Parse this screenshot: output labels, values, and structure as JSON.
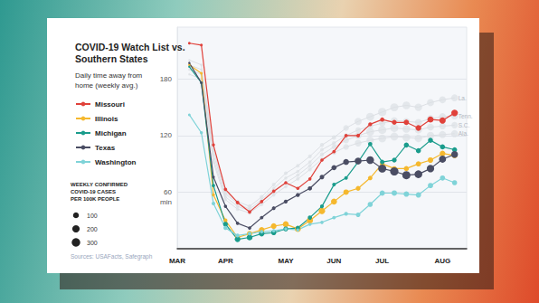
{
  "chart_data": {
    "type": "line",
    "title": "COVID-19 Watch List vs. Southern States",
    "subtitle": "Daily time away from home (weekly avg.)",
    "ylabel": "min",
    "source": "Sources: USAFacts, Safegraph",
    "categories": [
      "MAR",
      null,
      null,
      null,
      "APR",
      null,
      null,
      null,
      null,
      "MAY",
      null,
      null,
      null,
      "JUN",
      null,
      null,
      null,
      "JUL",
      null,
      null,
      null,
      null,
      "AUG",
      null,
      null
    ],
    "ylim": [
      0,
      235
    ],
    "yticks": [
      60,
      120,
      180
    ],
    "grid": true,
    "legend": "left",
    "marker": "circle",
    "size_legend": {
      "title": [
        "WEEKLY CONFIRMED",
        "COVID-19 CASES",
        "PER 100K PEOPLE"
      ],
      "values": [
        100,
        200,
        300
      ]
    },
    "series": [
      {
        "name": "La.",
        "color": "#dcdfe4",
        "line_style": "faint",
        "values": [
          null,
          200,
          195,
          105,
          60,
          50,
          45,
          55,
          68,
          80,
          88,
          98,
          110,
          118,
          128,
          135,
          140,
          145,
          150,
          152,
          150,
          155,
          158,
          160,
          null
        ],
        "cases": [
          null,
          0,
          1,
          3,
          10,
          20,
          25,
          20,
          18,
          15,
          15,
          18,
          25,
          40,
          90,
          180,
          250,
          280,
          260,
          230,
          200,
          180,
          170,
          160,
          null
        ]
      },
      {
        "name": "Tenn.",
        "color": "#dcdfe4",
        "line_style": "faint",
        "values": [
          null,
          195,
          190,
          100,
          58,
          48,
          42,
          52,
          64,
          75,
          82,
          92,
          105,
          112,
          120,
          126,
          130,
          133,
          136,
          135,
          134,
          138,
          140,
          141,
          null
        ],
        "cases": [
          null,
          0,
          1,
          2,
          5,
          8,
          10,
          9,
          8,
          8,
          9,
          10,
          15,
          25,
          45,
          70,
          100,
          130,
          150,
          160,
          170,
          175,
          180,
          180,
          null
        ]
      },
      {
        "name": "S.C.",
        "color": "#dcdfe4",
        "line_style": "faint",
        "values": [
          null,
          190,
          185,
          95,
          55,
          45,
          40,
          50,
          60,
          70,
          78,
          88,
          100,
          108,
          115,
          120,
          124,
          126,
          128,
          127,
          126,
          129,
          130,
          131,
          null
        ],
        "cases": [
          null,
          0,
          1,
          2,
          6,
          10,
          12,
          11,
          10,
          10,
          12,
          15,
          25,
          50,
          100,
          180,
          240,
          260,
          250,
          220,
          190,
          160,
          140,
          130,
          null
        ]
      },
      {
        "name": "Ala.",
        "color": "#dcdfe4",
        "line_style": "faint",
        "values": [
          null,
          185,
          180,
          92,
          52,
          42,
          38,
          47,
          57,
          66,
          74,
          84,
          95,
          102,
          108,
          112,
          115,
          117,
          119,
          118,
          117,
          120,
          121,
          122,
          null
        ],
        "cases": [
          null,
          0,
          1,
          3,
          8,
          12,
          14,
          13,
          12,
          13,
          15,
          20,
          30,
          50,
          90,
          150,
          200,
          230,
          240,
          230,
          210,
          200,
          190,
          180,
          null
        ]
      },
      {
        "name": "Missouri",
        "color": "#e0413a",
        "line_style": "solid",
        "values": [
          null,
          218,
          216,
          110,
          63,
          49,
          39,
          50,
          61,
          70,
          64,
          74,
          94,
          103,
          120,
          120,
          132,
          137,
          134,
          134,
          128,
          137,
          136,
          144,
          null
        ],
        "cases": [
          null,
          1,
          2,
          5,
          10,
          12,
          10,
          8,
          7,
          6,
          6,
          7,
          8,
          9,
          10,
          15,
          20,
          30,
          50,
          70,
          90,
          110,
          130,
          150,
          null
        ]
      },
      {
        "name": "Illinois",
        "color": "#f5b82e",
        "line_style": "solid",
        "values": [
          null,
          195,
          186,
          57,
          30,
          12,
          16,
          20,
          24,
          26,
          21,
          30,
          40,
          50,
          60,
          64,
          75,
          90,
          85,
          85,
          90,
          94,
          101,
          99,
          null
        ],
        "cases": [
          null,
          0,
          1,
          5,
          20,
          50,
          70,
          80,
          90,
          100,
          110,
          120,
          130,
          110,
          80,
          50,
          40,
          40,
          50,
          60,
          70,
          80,
          90,
          100,
          null
        ]
      },
      {
        "name": "Michigan",
        "color": "#1a9c8c",
        "line_style": "solid",
        "values": [
          null,
          193,
          176,
          67,
          26,
          10,
          12,
          16,
          17,
          21,
          22,
          33,
          45,
          68,
          75,
          92,
          111,
          92,
          94,
          110,
          104,
          115,
          108,
          105,
          null
        ],
        "cases": [
          null,
          0,
          1,
          10,
          50,
          90,
          100,
          80,
          60,
          50,
          40,
          30,
          20,
          15,
          15,
          20,
          30,
          40,
          50,
          60,
          60,
          60,
          60,
          55,
          null
        ]
      },
      {
        "name": "Texas",
        "color": "#4a4d63",
        "line_style": "solid",
        "values": [
          null,
          197,
          176,
          76,
          45,
          27,
          22,
          33,
          43,
          50,
          57,
          64,
          76,
          86,
          92,
          93,
          94,
          85,
          82,
          78,
          79,
          85,
          95,
          100,
          null
        ],
        "cases": [
          null,
          0,
          1,
          3,
          8,
          10,
          10,
          12,
          15,
          20,
          25,
          30,
          40,
          60,
          100,
          160,
          220,
          260,
          280,
          260,
          230,
          200,
          180,
          160,
          null
        ]
      },
      {
        "name": "Washington",
        "color": "#7fd3d8",
        "line_style": "solid",
        "values": [
          null,
          142,
          123,
          48,
          22,
          14,
          16,
          18,
          19,
          21,
          20,
          26,
          28,
          33,
          37,
          36,
          47,
          59,
          59,
          58,
          57,
          67,
          75,
          70,
          null
        ],
        "cases": [
          null,
          1,
          5,
          15,
          25,
          20,
          15,
          10,
          8,
          7,
          6,
          6,
          8,
          12,
          20,
          40,
          60,
          70,
          80,
          80,
          75,
          70,
          65,
          60,
          null
        ]
      }
    ]
  }
}
